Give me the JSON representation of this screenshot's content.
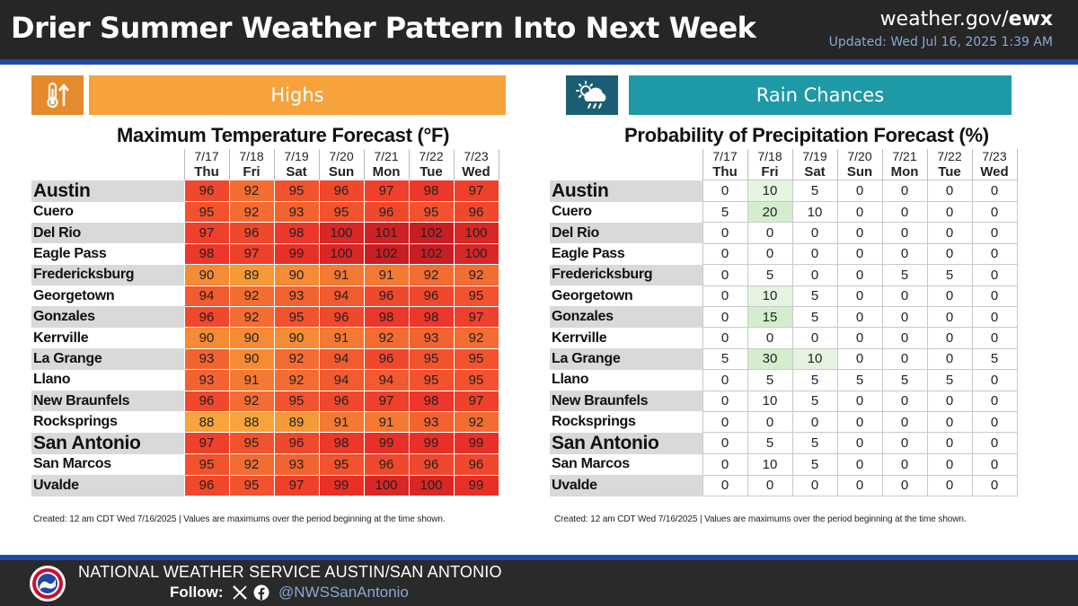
{
  "header": {
    "title": "Drier Summer Weather Pattern Into Next Week",
    "site_prefix": "weather.gov/",
    "site_suffix": "ewx",
    "updated": "Updated: Wed Jul 16, 2025 1:39 AM"
  },
  "days": [
    {
      "date": "7/17",
      "dow": "Thu"
    },
    {
      "date": "7/18",
      "dow": "Fri"
    },
    {
      "date": "7/19",
      "dow": "Sat"
    },
    {
      "date": "7/20",
      "dow": "Sun"
    },
    {
      "date": "7/21",
      "dow": "Mon"
    },
    {
      "date": "7/22",
      "dow": "Tue"
    },
    {
      "date": "7/23",
      "dow": "Wed"
    }
  ],
  "highs": {
    "banner": "Highs",
    "icon": "thermometer-up-icon",
    "title": "Maximum Temperature Forecast (°F)",
    "footnote": "Created: 12 am CDT Wed 7/16/2025  |  Values are maximums over the period beginning at the time shown.",
    "rows": [
      {
        "place": "Austin",
        "major": true,
        "values": [
          96,
          92,
          95,
          96,
          97,
          98,
          97
        ]
      },
      {
        "place": "Cuero",
        "major": false,
        "values": [
          95,
          92,
          93,
          95,
          96,
          95,
          96
        ]
      },
      {
        "place": "Del Rio",
        "major": false,
        "values": [
          97,
          96,
          98,
          100,
          101,
          102,
          100
        ]
      },
      {
        "place": "Eagle Pass",
        "major": false,
        "values": [
          98,
          97,
          99,
          100,
          102,
          102,
          100
        ]
      },
      {
        "place": "Fredericksburg",
        "major": false,
        "values": [
          90,
          89,
          90,
          91,
          91,
          92,
          92
        ]
      },
      {
        "place": "Georgetown",
        "major": false,
        "values": [
          94,
          92,
          93,
          94,
          96,
          96,
          95
        ]
      },
      {
        "place": "Gonzales",
        "major": false,
        "values": [
          96,
          92,
          95,
          96,
          98,
          98,
          97
        ]
      },
      {
        "place": "Kerrville",
        "major": false,
        "values": [
          90,
          90,
          90,
          91,
          92,
          93,
          92
        ]
      },
      {
        "place": "La Grange",
        "major": false,
        "values": [
          93,
          90,
          92,
          94,
          96,
          95,
          95
        ]
      },
      {
        "place": "Llano",
        "major": false,
        "values": [
          93,
          91,
          92,
          94,
          94,
          95,
          95
        ]
      },
      {
        "place": "New Braunfels",
        "major": false,
        "values": [
          96,
          92,
          95,
          96,
          97,
          98,
          97
        ]
      },
      {
        "place": "Rocksprings",
        "major": false,
        "values": [
          88,
          88,
          89,
          91,
          91,
          93,
          92
        ]
      },
      {
        "place": "San Antonio",
        "major": true,
        "values": [
          97,
          95,
          96,
          98,
          99,
          99,
          99
        ]
      },
      {
        "place": "San Marcos",
        "major": false,
        "values": [
          95,
          92,
          93,
          95,
          96,
          96,
          96
        ]
      },
      {
        "place": "Uvalde",
        "major": false,
        "values": [
          96,
          95,
          97,
          99,
          100,
          100,
          99
        ]
      }
    ],
    "colors": {
      "88": "#f7a43c",
      "89": "#f59a36",
      "90": "#f58b35",
      "91": "#f47a33",
      "92": "#f36c32",
      "93": "#f36330",
      "94": "#f25a2f",
      "95": "#f2522e",
      "96": "#f0482d",
      "97": "#ee402b",
      "98": "#ec372a",
      "99": "#e83028",
      "100": "#d92726",
      "101": "#cf2124",
      "102": "#c81e23"
    }
  },
  "rain": {
    "banner": "Rain Chances",
    "icon": "sun-cloud-rain-icon",
    "title": "Probability of Precipitation Forecast (%)",
    "footnote": "Created: 12 am CDT Wed 7/16/2025  |  Values are maximums over the period beginning at the time shown.",
    "rows": [
      {
        "place": "Austin",
        "major": true,
        "values": [
          0,
          10,
          5,
          0,
          0,
          0,
          0
        ]
      },
      {
        "place": "Cuero",
        "major": false,
        "values": [
          5,
          20,
          10,
          0,
          0,
          0,
          0
        ]
      },
      {
        "place": "Del Rio",
        "major": false,
        "values": [
          0,
          0,
          0,
          0,
          0,
          0,
          0
        ]
      },
      {
        "place": "Eagle Pass",
        "major": false,
        "values": [
          0,
          0,
          0,
          0,
          0,
          0,
          0
        ]
      },
      {
        "place": "Fredericksburg",
        "major": false,
        "values": [
          0,
          5,
          0,
          0,
          5,
          5,
          0
        ]
      },
      {
        "place": "Georgetown",
        "major": false,
        "values": [
          0,
          10,
          5,
          0,
          0,
          0,
          0
        ]
      },
      {
        "place": "Gonzales",
        "major": false,
        "values": [
          0,
          15,
          5,
          0,
          0,
          0,
          0
        ]
      },
      {
        "place": "Kerrville",
        "major": false,
        "values": [
          0,
          0,
          0,
          0,
          0,
          0,
          0
        ]
      },
      {
        "place": "La Grange",
        "major": false,
        "values": [
          5,
          30,
          10,
          0,
          0,
          0,
          5
        ]
      },
      {
        "place": "Llano",
        "major": false,
        "values": [
          0,
          5,
          5,
          5,
          5,
          5,
          0
        ]
      },
      {
        "place": "New Braunfels",
        "major": false,
        "values": [
          0,
          10,
          5,
          0,
          0,
          0,
          0
        ]
      },
      {
        "place": "Rocksprings",
        "major": false,
        "values": [
          0,
          0,
          0,
          0,
          0,
          0,
          0
        ]
      },
      {
        "place": "San Antonio",
        "major": true,
        "values": [
          0,
          5,
          5,
          0,
          0,
          0,
          0
        ]
      },
      {
        "place": "San Marcos",
        "major": false,
        "values": [
          0,
          10,
          5,
          0,
          0,
          0,
          0
        ]
      },
      {
        "place": "Uvalde",
        "major": false,
        "values": [
          0,
          0,
          0,
          0,
          0,
          0,
          0
        ]
      }
    ],
    "highlighted_cells": [
      [
        0,
        1
      ],
      [
        1,
        1
      ],
      [
        5,
        1
      ],
      [
        6,
        1
      ],
      [
        8,
        1
      ],
      [
        8,
        2
      ]
    ]
  },
  "footer": {
    "office": "NATIONAL WEATHER SERVICE AUSTIN/SAN ANTONIO",
    "follow_label": "Follow:",
    "handle": "@NWSSanAntonio",
    "logo_icon": "nws-logo-icon",
    "social_icons": [
      "x-icon",
      "facebook-icon"
    ]
  }
}
